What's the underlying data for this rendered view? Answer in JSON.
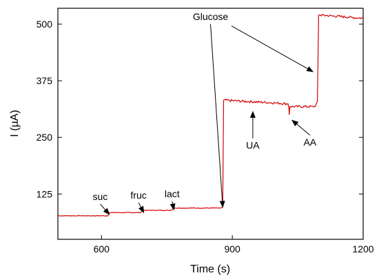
{
  "chart_data": {
    "type": "line",
    "xlabel": "Time (s)",
    "ylabel": "I (µA)",
    "xlim": [
      500,
      1200
    ],
    "ylim": [
      25,
      535
    ],
    "xticks": [
      600,
      900,
      1200
    ],
    "xtick_labels": [
      "600",
      "900",
      "1200"
    ],
    "yticks": [
      125,
      250,
      375,
      500
    ],
    "ytick_labels": [
      "125",
      "250",
      "375",
      "500"
    ],
    "grid": false,
    "line_color": "#d40000",
    "series": [
      {
        "x": [
          500,
          615,
          618,
          690,
          695,
          760,
          765,
          872,
          878,
          880,
          1000,
          1028,
          1030,
          1030.5,
          1032,
          1090,
          1095,
          1098,
          1102,
          1200
        ],
        "y": [
          77,
          77,
          84,
          84,
          89,
          89,
          94,
          94,
          96,
          332,
          326,
          324,
          312,
          300,
          318,
          318,
          330,
          520,
          520,
          513
        ]
      }
    ],
    "annotations": [
      {
        "text": "suc",
        "x": 597,
        "y": 112,
        "arrow_to": [
          618,
          80
        ]
      },
      {
        "text": "fruc",
        "x": 685,
        "y": 115,
        "arrow_to": [
          697,
          84
        ]
      },
      {
        "text": "lact",
        "x": 762,
        "y": 118,
        "arrow_to": [
          766,
          90
        ]
      },
      {
        "text": "Glucose",
        "x": 850,
        "y": 509,
        "arrow_to": [
          878,
          96
        ]
      },
      {
        "text": "UA",
        "x": 947,
        "y": 225,
        "arrow_to": [
          947,
          307
        ]
      },
      {
        "text": "AA",
        "x": 1078,
        "y": 232,
        "arrow_to": [
          1037,
          288
        ]
      }
    ],
    "extra_arrows": [
      {
        "from": [
          898,
          496
        ],
        "to": [
          1085,
          395
        ]
      }
    ]
  }
}
